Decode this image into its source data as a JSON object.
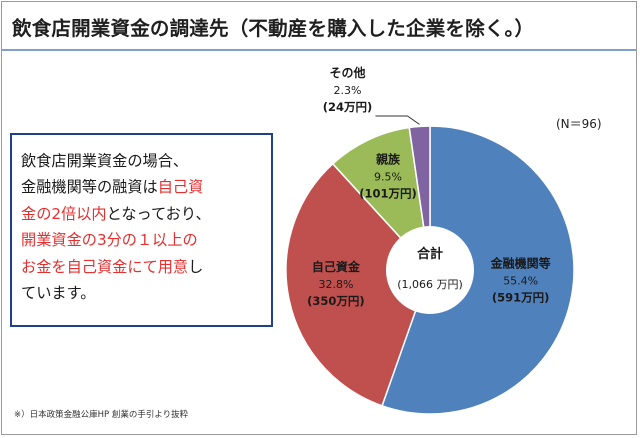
{
  "title": "飲食店開業資金の調達先（不動産を購入した企業を除く。）",
  "sample_size": "(N＝96)",
  "note": {
    "lines": [
      [
        {
          "text": "飲食店開業資金の場合、",
          "emphasis": false
        }
      ],
      [
        {
          "text": "金融機関等の融資は",
          "emphasis": false
        },
        {
          "text": "自己資",
          "emphasis": true
        }
      ],
      [
        {
          "text": "金の2倍以内",
          "emphasis": true
        },
        {
          "text": "となっており、",
          "emphasis": false
        }
      ],
      [
        {
          "text": "開業資金の3分の１以上の",
          "emphasis": true
        }
      ],
      [
        {
          "text": "お金を自己資金にて用意",
          "emphasis": true
        },
        {
          "text": "し",
          "emphasis": false
        }
      ],
      [
        {
          "text": "ています。",
          "emphasis": false
        }
      ]
    ],
    "emphasis_color": "#e53030"
  },
  "footnote": "※）日本政策金融公庫HP 創業の手引より抜粋",
  "chart_data": {
    "type": "pie",
    "title": "飲食店開業資金の調達先（不動産を購入した企業を除く。）",
    "center_label": "合計",
    "center_value": "(1,066 万円)",
    "total": 1066,
    "unit": "万円",
    "slices": [
      {
        "name": "金融機関等",
        "percent": 55.4,
        "percent_label": "55.4%",
        "amount_label": "(591万円)",
        "color": "#4f81bd"
      },
      {
        "name": "自己資金",
        "percent": 32.8,
        "percent_label": "32.8%",
        "amount_label": "(350万円)",
        "color": "#c0504d"
      },
      {
        "name": "親族",
        "percent": 9.5,
        "percent_label": "9.5%",
        "amount_label": "(101万円)",
        "color": "#9bbb59"
      },
      {
        "name": "その他",
        "percent": 2.3,
        "percent_label": "2.3%",
        "amount_label": "(24万円)",
        "color": "#8064a2"
      }
    ]
  }
}
